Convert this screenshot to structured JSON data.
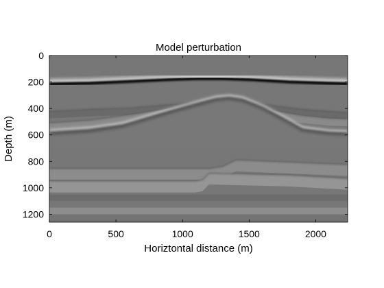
{
  "chart_data": {
    "type": "heatmap",
    "title": "Model perturbation",
    "xlabel": "Horiztontal distance (m)",
    "ylabel": "Depth (m)",
    "xlim": [
      0,
      2240
    ],
    "ylim": [
      1260,
      0
    ],
    "y_reversed": true,
    "grid": false,
    "colormap": "gray",
    "background_value": "#777777",
    "xticks": [
      0,
      500,
      1000,
      1500,
      2000
    ],
    "yticks": [
      0,
      200,
      400,
      600,
      800,
      1000,
      1200
    ],
    "interfaces": [
      {
        "kind": "water-bottom",
        "color_above": "#777777",
        "edge_light": "#ffffff",
        "edge_dark": "#000000",
        "points": [
          [
            0,
            210
          ],
          [
            300,
            205
          ],
          [
            600,
            192
          ],
          [
            900,
            178
          ],
          [
            1100,
            172
          ],
          [
            1300,
            172
          ],
          [
            1500,
            178
          ],
          [
            1800,
            195
          ],
          [
            2100,
            205
          ],
          [
            2240,
            208
          ]
        ]
      },
      {
        "kind": "salt-top",
        "edge_light": "#ffffff",
        "edge_dark": "#333333",
        "points": [
          [
            0,
            580
          ],
          [
            300,
            560
          ],
          [
            550,
            525
          ],
          [
            700,
            480
          ],
          [
            900,
            420
          ],
          [
            1100,
            365
          ],
          [
            1250,
            325
          ],
          [
            1350,
            315
          ],
          [
            1450,
            330
          ],
          [
            1600,
            390
          ],
          [
            1750,
            470
          ],
          [
            1900,
            555
          ],
          [
            2100,
            580
          ],
          [
            2240,
            585
          ]
        ]
      },
      {
        "kind": "layer",
        "color": "#6a6a6a",
        "points": [
          [
            0,
            420
          ],
          [
            300,
            405
          ],
          [
            600,
            395
          ],
          [
            900,
            370
          ],
          [
            1100,
            355
          ],
          [
            1300,
            330
          ],
          [
            1500,
            350
          ],
          [
            1700,
            380
          ],
          [
            1900,
            405
          ],
          [
            2100,
            420
          ],
          [
            2240,
            430
          ]
        ]
      },
      {
        "kind": "layer",
        "color": "#8a8a8a",
        "points": [
          [
            0,
            510
          ],
          [
            300,
            490
          ],
          [
            600,
            450
          ],
          [
            900,
            400
          ],
          [
            1100,
            370
          ],
          [
            1300,
            335
          ],
          [
            1500,
            360
          ],
          [
            1700,
            420
          ],
          [
            1900,
            455
          ],
          [
            2100,
            475
          ],
          [
            2240,
            480
          ]
        ]
      },
      {
        "kind": "fault-block",
        "color": "#8c8c8c",
        "points": [
          [
            0,
            855
          ],
          [
            1200,
            855
          ],
          [
            1300,
            840
          ],
          [
            1400,
            790
          ],
          [
            2240,
            825
          ]
        ]
      },
      {
        "kind": "fault-block",
        "color": "#959595",
        "points": [
          [
            0,
            950
          ],
          [
            1100,
            950
          ],
          [
            1150,
            940
          ],
          [
            1200,
            890
          ],
          [
            1400,
            895
          ],
          [
            1800,
            905
          ],
          [
            2240,
            930
          ]
        ]
      },
      {
        "kind": "flat-layer",
        "color": "#6c6c6c",
        "points": [
          [
            0,
            1050
          ],
          [
            2240,
            1050
          ]
        ]
      },
      {
        "kind": "flat-layer",
        "color": "#8d8d8d",
        "points": [
          [
            0,
            1150
          ],
          [
            2240,
            1150
          ]
        ]
      },
      {
        "kind": "flat-layer",
        "color": "#737373",
        "points": [
          [
            0,
            1210
          ],
          [
            2240,
            1210
          ]
        ]
      }
    ]
  }
}
